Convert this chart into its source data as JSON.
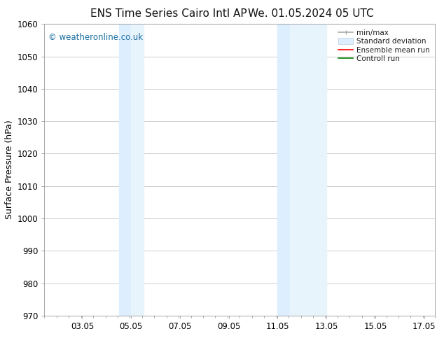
{
  "title_left": "ENS Time Series Cairo Intl AP",
  "title_right": "We. 01.05.2024 05 UTC",
  "ylabel": "Surface Pressure (hPa)",
  "ylim": [
    970,
    1060
  ],
  "yticks": [
    970,
    980,
    990,
    1000,
    1010,
    1020,
    1030,
    1040,
    1050,
    1060
  ],
  "xlim_start": 1.5,
  "xlim_end": 17.5,
  "xticks": [
    3.05,
    5.05,
    7.05,
    9.05,
    11.05,
    13.05,
    15.05,
    17.05
  ],
  "xtick_labels": [
    "03.05",
    "05.05",
    "07.05",
    "09.05",
    "11.05",
    "13.05",
    "15.05",
    "17.05"
  ],
  "band1_x1": 4.55,
  "band1_x2": 5.05,
  "band1_x3": 5.05,
  "band1_x4": 5.55,
  "band2_x1": 11.05,
  "band2_x2": 11.55,
  "band2_x3": 11.55,
  "band2_x4": 13.05,
  "band_color": "#ddeeff",
  "band_color2": "#e8f4fc",
  "watermark_text": "© weatheronline.co.uk",
  "watermark_color": "#1a6fa0",
  "background_color": "#ffffff",
  "grid_color": "#bbbbbb",
  "title_fontsize": 11,
  "ylabel_fontsize": 9,
  "tick_fontsize": 8.5
}
